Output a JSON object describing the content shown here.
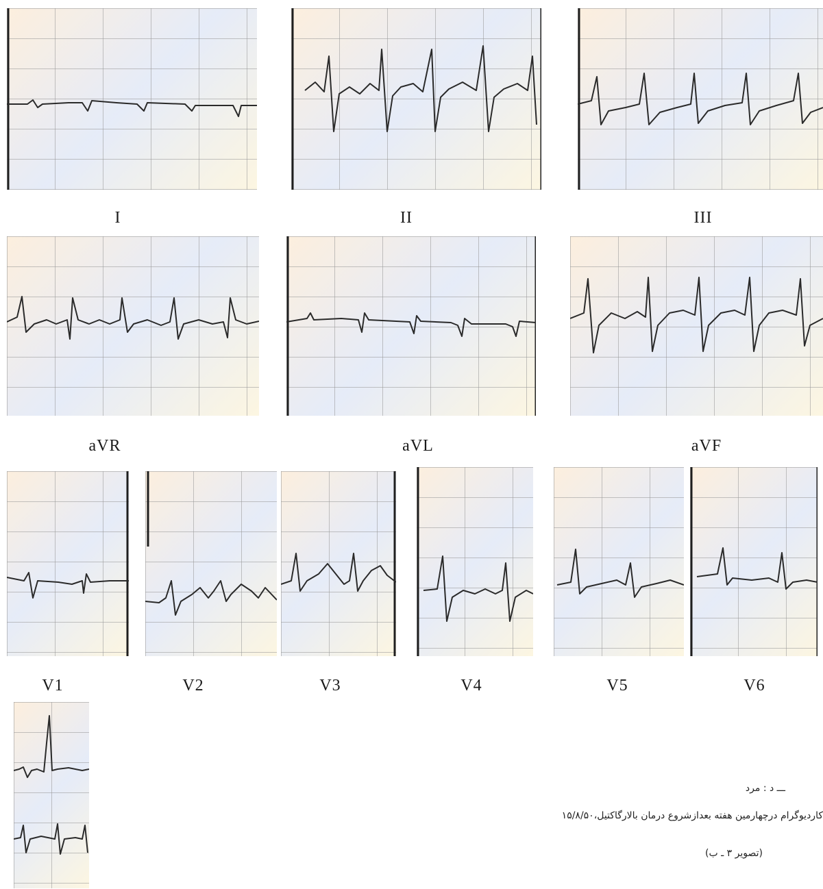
{
  "leads": {
    "I": "I",
    "II": "II",
    "III": "III",
    "aVR": "aVR",
    "aVL": "aVL",
    "aVF": "aVF",
    "V1": "V1",
    "V2": "V2",
    "V3": "V3",
    "V4": "V4",
    "V5": "V5",
    "V6": "V6"
  },
  "caption": {
    "line1": "ـــ د : مرد",
    "line2": "کاردیوگرام درچهارمین هفته بعدازشروع درمان بالارگاکتیل،۱۵/۸/۵۰",
    "line3": "(تصویر ۳ ـ ب)"
  }
}
